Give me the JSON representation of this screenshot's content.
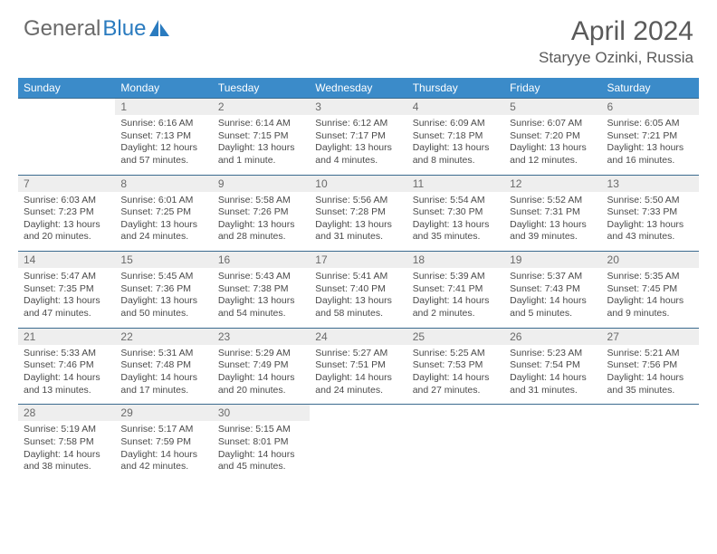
{
  "brand": {
    "part1": "General",
    "part2": "Blue"
  },
  "title": "April 2024",
  "location": "Staryye Ozinki, Russia",
  "colors": {
    "header_bg": "#3b8bc9",
    "header_text": "#ffffff",
    "daynum_bg": "#eeeeee",
    "text": "#4a4a4a",
    "row_border": "#3b6b8f",
    "logo_gray": "#6a6a6a",
    "logo_blue": "#2a7bbf"
  },
  "days_of_week": [
    "Sunday",
    "Monday",
    "Tuesday",
    "Wednesday",
    "Thursday",
    "Friday",
    "Saturday"
  ],
  "weeks": [
    [
      {
        "n": "",
        "sunrise": "",
        "sunset": "",
        "daylight": ""
      },
      {
        "n": "1",
        "sunrise": "Sunrise: 6:16 AM",
        "sunset": "Sunset: 7:13 PM",
        "daylight": "Daylight: 12 hours and 57 minutes."
      },
      {
        "n": "2",
        "sunrise": "Sunrise: 6:14 AM",
        "sunset": "Sunset: 7:15 PM",
        "daylight": "Daylight: 13 hours and 1 minute."
      },
      {
        "n": "3",
        "sunrise": "Sunrise: 6:12 AM",
        "sunset": "Sunset: 7:17 PM",
        "daylight": "Daylight: 13 hours and 4 minutes."
      },
      {
        "n": "4",
        "sunrise": "Sunrise: 6:09 AM",
        "sunset": "Sunset: 7:18 PM",
        "daylight": "Daylight: 13 hours and 8 minutes."
      },
      {
        "n": "5",
        "sunrise": "Sunrise: 6:07 AM",
        "sunset": "Sunset: 7:20 PM",
        "daylight": "Daylight: 13 hours and 12 minutes."
      },
      {
        "n": "6",
        "sunrise": "Sunrise: 6:05 AM",
        "sunset": "Sunset: 7:21 PM",
        "daylight": "Daylight: 13 hours and 16 minutes."
      }
    ],
    [
      {
        "n": "7",
        "sunrise": "Sunrise: 6:03 AM",
        "sunset": "Sunset: 7:23 PM",
        "daylight": "Daylight: 13 hours and 20 minutes."
      },
      {
        "n": "8",
        "sunrise": "Sunrise: 6:01 AM",
        "sunset": "Sunset: 7:25 PM",
        "daylight": "Daylight: 13 hours and 24 minutes."
      },
      {
        "n": "9",
        "sunrise": "Sunrise: 5:58 AM",
        "sunset": "Sunset: 7:26 PM",
        "daylight": "Daylight: 13 hours and 28 minutes."
      },
      {
        "n": "10",
        "sunrise": "Sunrise: 5:56 AM",
        "sunset": "Sunset: 7:28 PM",
        "daylight": "Daylight: 13 hours and 31 minutes."
      },
      {
        "n": "11",
        "sunrise": "Sunrise: 5:54 AM",
        "sunset": "Sunset: 7:30 PM",
        "daylight": "Daylight: 13 hours and 35 minutes."
      },
      {
        "n": "12",
        "sunrise": "Sunrise: 5:52 AM",
        "sunset": "Sunset: 7:31 PM",
        "daylight": "Daylight: 13 hours and 39 minutes."
      },
      {
        "n": "13",
        "sunrise": "Sunrise: 5:50 AM",
        "sunset": "Sunset: 7:33 PM",
        "daylight": "Daylight: 13 hours and 43 minutes."
      }
    ],
    [
      {
        "n": "14",
        "sunrise": "Sunrise: 5:47 AM",
        "sunset": "Sunset: 7:35 PM",
        "daylight": "Daylight: 13 hours and 47 minutes."
      },
      {
        "n": "15",
        "sunrise": "Sunrise: 5:45 AM",
        "sunset": "Sunset: 7:36 PM",
        "daylight": "Daylight: 13 hours and 50 minutes."
      },
      {
        "n": "16",
        "sunrise": "Sunrise: 5:43 AM",
        "sunset": "Sunset: 7:38 PM",
        "daylight": "Daylight: 13 hours and 54 minutes."
      },
      {
        "n": "17",
        "sunrise": "Sunrise: 5:41 AM",
        "sunset": "Sunset: 7:40 PM",
        "daylight": "Daylight: 13 hours and 58 minutes."
      },
      {
        "n": "18",
        "sunrise": "Sunrise: 5:39 AM",
        "sunset": "Sunset: 7:41 PM",
        "daylight": "Daylight: 14 hours and 2 minutes."
      },
      {
        "n": "19",
        "sunrise": "Sunrise: 5:37 AM",
        "sunset": "Sunset: 7:43 PM",
        "daylight": "Daylight: 14 hours and 5 minutes."
      },
      {
        "n": "20",
        "sunrise": "Sunrise: 5:35 AM",
        "sunset": "Sunset: 7:45 PM",
        "daylight": "Daylight: 14 hours and 9 minutes."
      }
    ],
    [
      {
        "n": "21",
        "sunrise": "Sunrise: 5:33 AM",
        "sunset": "Sunset: 7:46 PM",
        "daylight": "Daylight: 14 hours and 13 minutes."
      },
      {
        "n": "22",
        "sunrise": "Sunrise: 5:31 AM",
        "sunset": "Sunset: 7:48 PM",
        "daylight": "Daylight: 14 hours and 17 minutes."
      },
      {
        "n": "23",
        "sunrise": "Sunrise: 5:29 AM",
        "sunset": "Sunset: 7:49 PM",
        "daylight": "Daylight: 14 hours and 20 minutes."
      },
      {
        "n": "24",
        "sunrise": "Sunrise: 5:27 AM",
        "sunset": "Sunset: 7:51 PM",
        "daylight": "Daylight: 14 hours and 24 minutes."
      },
      {
        "n": "25",
        "sunrise": "Sunrise: 5:25 AM",
        "sunset": "Sunset: 7:53 PM",
        "daylight": "Daylight: 14 hours and 27 minutes."
      },
      {
        "n": "26",
        "sunrise": "Sunrise: 5:23 AM",
        "sunset": "Sunset: 7:54 PM",
        "daylight": "Daylight: 14 hours and 31 minutes."
      },
      {
        "n": "27",
        "sunrise": "Sunrise: 5:21 AM",
        "sunset": "Sunset: 7:56 PM",
        "daylight": "Daylight: 14 hours and 35 minutes."
      }
    ],
    [
      {
        "n": "28",
        "sunrise": "Sunrise: 5:19 AM",
        "sunset": "Sunset: 7:58 PM",
        "daylight": "Daylight: 14 hours and 38 minutes."
      },
      {
        "n": "29",
        "sunrise": "Sunrise: 5:17 AM",
        "sunset": "Sunset: 7:59 PM",
        "daylight": "Daylight: 14 hours and 42 minutes."
      },
      {
        "n": "30",
        "sunrise": "Sunrise: 5:15 AM",
        "sunset": "Sunset: 8:01 PM",
        "daylight": "Daylight: 14 hours and 45 minutes."
      },
      {
        "n": "",
        "sunrise": "",
        "sunset": "",
        "daylight": ""
      },
      {
        "n": "",
        "sunrise": "",
        "sunset": "",
        "daylight": ""
      },
      {
        "n": "",
        "sunrise": "",
        "sunset": "",
        "daylight": ""
      },
      {
        "n": "",
        "sunrise": "",
        "sunset": "",
        "daylight": ""
      }
    ]
  ]
}
